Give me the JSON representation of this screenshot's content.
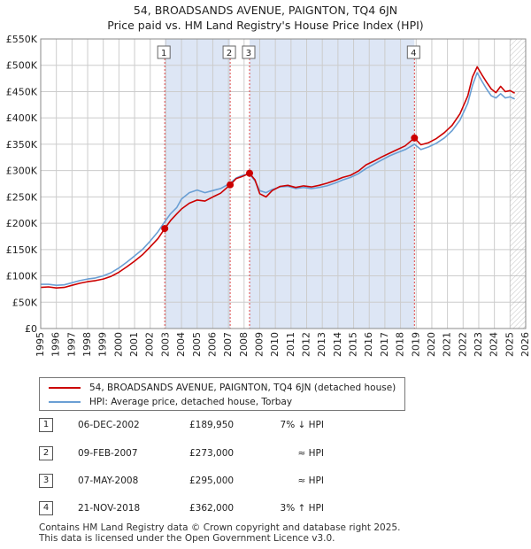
{
  "title_line1": "54, BROADSANDS AVENUE, PAIGNTON, TQ4 6JN",
  "title_line2": "Price paid vs. HM Land Registry's House Price Index (HPI)",
  "legend": {
    "property_label": "54, BROADSANDS AVENUE, PAIGNTON, TQ4 6JN (detached house)",
    "hpi_label": "HPI: Average price, detached house, Torbay"
  },
  "colors": {
    "property": "#cc0000",
    "hpi": "#6a9fd4",
    "shade": "#dde6f5",
    "grid": "#cccccc",
    "marker_line": "#dd4444"
  },
  "sales": [
    {
      "num": "1",
      "date": "06-DEC-2002",
      "price": "£189,950",
      "delta": "7% ↓ HPI"
    },
    {
      "num": "2",
      "date": "09-FEB-2007",
      "price": "£273,000",
      "delta": "≈ HPI"
    },
    {
      "num": "3",
      "date": "07-MAY-2008",
      "price": "£295,000",
      "delta": "≈ HPI"
    },
    {
      "num": "4",
      "date": "21-NOV-2018",
      "price": "£362,000",
      "delta": "3% ↑ HPI"
    }
  ],
  "footer_line1": "Contains HM Land Registry data © Crown copyright and database right 2025.",
  "footer_line2": "This data is licensed under the Open Government Licence v3.0.",
  "chart_data": {
    "type": "line",
    "xlim": [
      1995,
      2026
    ],
    "ylim": [
      0,
      550000
    ],
    "y_ticks": [
      0,
      50000,
      100000,
      150000,
      200000,
      250000,
      300000,
      350000,
      400000,
      450000,
      500000,
      550000
    ],
    "y_tick_labels": [
      "£0",
      "£50K",
      "£100K",
      "£150K",
      "£200K",
      "£250K",
      "£300K",
      "£350K",
      "£400K",
      "£450K",
      "£500K",
      "£550K"
    ],
    "x_ticks": [
      "1995",
      "1996",
      "1997",
      "1998",
      "1999",
      "2000",
      "2001",
      "2002",
      "2003",
      "2004",
      "2005",
      "2006",
      "2007",
      "2008",
      "2009",
      "2010",
      "2011",
      "2012",
      "2013",
      "2014",
      "2015",
      "2016",
      "2017",
      "2018",
      "2019",
      "2020",
      "2021",
      "2022",
      "2023",
      "2024",
      "2025",
      "2026"
    ],
    "shaded_ranges": [
      [
        2002.93,
        2007.11
      ],
      [
        2008.35,
        2018.89
      ]
    ],
    "future_from": 2025.0,
    "sale_points": [
      {
        "label": "1",
        "x": 2002.93,
        "y": 189950
      },
      {
        "label": "2",
        "x": 2007.11,
        "y": 273000
      },
      {
        "label": "3",
        "x": 2008.35,
        "y": 295000
      },
      {
        "label": "4",
        "x": 2018.89,
        "y": 362000
      }
    ],
    "series": [
      {
        "name": "54, BROADSANDS AVENUE, PAIGNTON, TQ4 6JN (detached house)",
        "x": [
          1995,
          1995.5,
          1996,
          1996.5,
          1997,
          1997.5,
          1998,
          1998.5,
          1999,
          1999.5,
          2000,
          2000.5,
          2001,
          2001.5,
          2002,
          2002.5,
          2002.93,
          2003.3,
          2003.7,
          2004,
          2004.5,
          2005,
          2005.5,
          2006,
          2006.5,
          2007.11,
          2007.5,
          2007.9,
          2008.35,
          2008.7,
          2009,
          2009.4,
          2009.8,
          2010.3,
          2010.8,
          2011.3,
          2011.8,
          2012.3,
          2012.8,
          2013.3,
          2013.8,
          2014.3,
          2014.8,
          2015.3,
          2015.8,
          2016.3,
          2016.8,
          2017.3,
          2017.8,
          2018.3,
          2018.89,
          2019.3,
          2019.8,
          2020.3,
          2020.8,
          2021.3,
          2021.8,
          2022.3,
          2022.6,
          2022.9,
          2023.2,
          2023.5,
          2023.8,
          2024.1,
          2024.4,
          2024.7,
          2025.0,
          2025.3
        ],
        "y": [
          78000,
          79000,
          77000,
          78000,
          82000,
          86000,
          89000,
          91000,
          94000,
          99000,
          107000,
          117000,
          128000,
          140000,
          155000,
          171000,
          189950,
          205000,
          218000,
          227000,
          238000,
          244000,
          242000,
          250000,
          257000,
          273000,
          285000,
          289000,
          295000,
          282000,
          256000,
          250000,
          262000,
          270000,
          272000,
          268000,
          271000,
          269000,
          272000,
          276000,
          281000,
          287000,
          291000,
          299000,
          311000,
          318000,
          326000,
          333000,
          340000,
          347000,
          362000,
          349000,
          353000,
          361000,
          372000,
          386000,
          408000,
          442000,
          478000,
          497000,
          482000,
          468000,
          455000,
          448000,
          460000,
          450000,
          452000,
          447000
        ]
      },
      {
        "name": "HPI: Average price, detached house, Torbay",
        "x": [
          1995,
          1995.5,
          1996,
          1996.5,
          1997,
          1997.5,
          1998,
          1998.5,
          1999,
          1999.5,
          2000,
          2000.5,
          2001,
          2001.5,
          2002,
          2002.5,
          2002.93,
          2003.3,
          2003.7,
          2004,
          2004.5,
          2005,
          2005.5,
          2006,
          2006.5,
          2007.11,
          2007.5,
          2007.9,
          2008.35,
          2008.7,
          2009,
          2009.4,
          2009.8,
          2010.3,
          2010.8,
          2011.3,
          2011.8,
          2012.3,
          2012.8,
          2013.3,
          2013.8,
          2014.3,
          2014.8,
          2015.3,
          2015.8,
          2016.3,
          2016.8,
          2017.3,
          2017.8,
          2018.3,
          2018.89,
          2019.3,
          2019.8,
          2020.3,
          2020.8,
          2021.3,
          2021.8,
          2022.3,
          2022.6,
          2022.9,
          2023.2,
          2023.5,
          2023.8,
          2024.1,
          2024.4,
          2024.7,
          2025.0,
          2025.3
        ],
        "y": [
          84000,
          84000,
          82000,
          83000,
          87000,
          91000,
          94000,
          96000,
          100000,
          106000,
          115000,
          126000,
          138000,
          150000,
          166000,
          184000,
          203000,
          218000,
          230000,
          246000,
          258000,
          263000,
          258000,
          262000,
          266000,
          276000,
          286000,
          291000,
          294000,
          280000,
          262000,
          258000,
          264000,
          269000,
          270000,
          266000,
          268000,
          266000,
          268000,
          271000,
          276000,
          282000,
          287000,
          294000,
          304000,
          312000,
          320000,
          328000,
          334000,
          340000,
          350000,
          340000,
          345000,
          352000,
          362000,
          376000,
          396000,
          428000,
          462000,
          486000,
          470000,
          455000,
          442000,
          438000,
          446000,
          438000,
          440000,
          436000
        ]
      }
    ]
  }
}
